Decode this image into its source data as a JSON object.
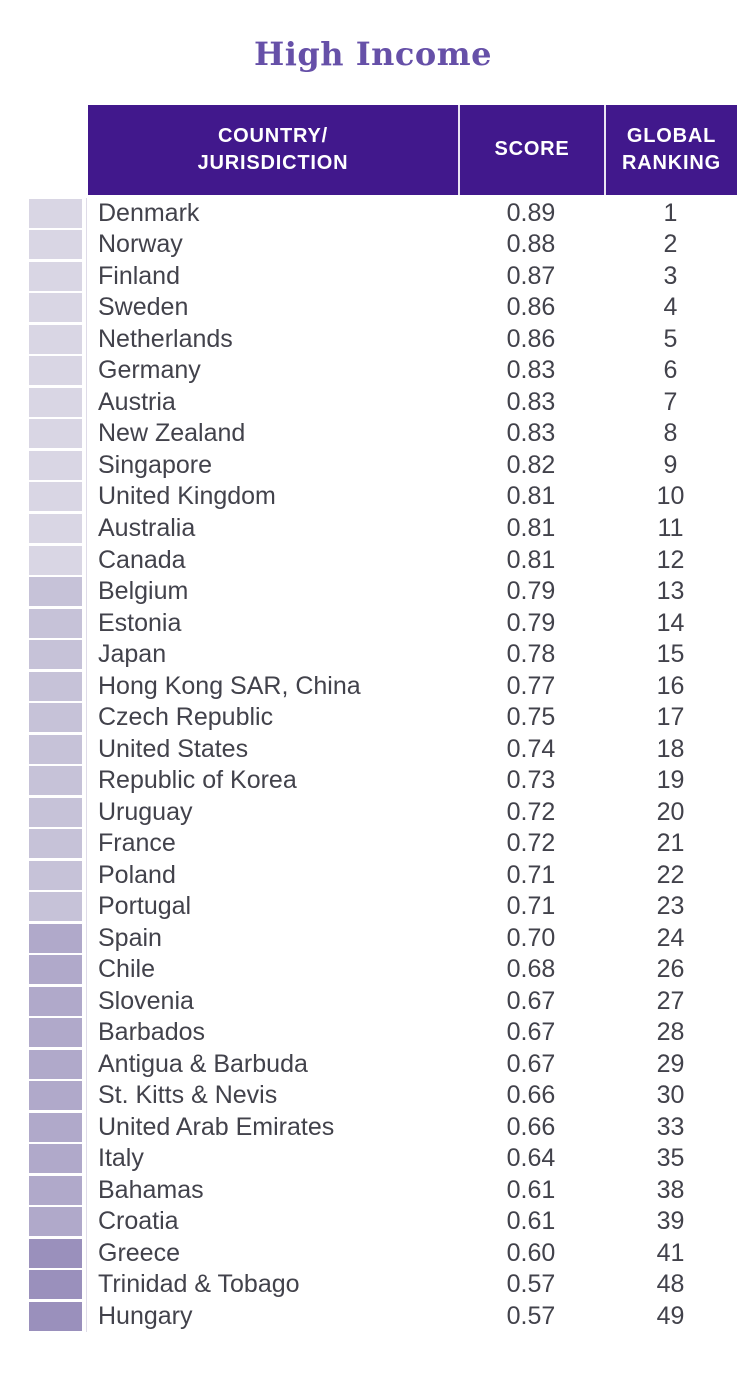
{
  "title": "High Income",
  "colors": {
    "title_text": "#6650A8",
    "header_bg": "#41188C",
    "header_text": "#FFFFFF",
    "header_divider": "#E9E4F2",
    "body_text": "#42424B",
    "tier_1": "#D9D6E4",
    "tier_2": "#C6C2D8",
    "tier_3": "#B0A9CA",
    "tier_4": "#9A90BC"
  },
  "table": {
    "columns": [
      {
        "lines": [
          "COUNTRY/",
          "JURISDICTION"
        ]
      },
      {
        "lines": [
          "SCORE"
        ]
      },
      {
        "lines": [
          "GLOBAL",
          "RANKING"
        ]
      }
    ],
    "rows": [
      {
        "country": "Denmark",
        "score": "0.89",
        "rank": "1",
        "tier": 1
      },
      {
        "country": "Norway",
        "score": "0.88",
        "rank": "2",
        "tier": 1
      },
      {
        "country": "Finland",
        "score": "0.87",
        "rank": "3",
        "tier": 1
      },
      {
        "country": "Sweden",
        "score": "0.86",
        "rank": "4",
        "tier": 1
      },
      {
        "country": "Netherlands",
        "score": "0.86",
        "rank": "5",
        "tier": 1
      },
      {
        "country": "Germany",
        "score": "0.83",
        "rank": "6",
        "tier": 1
      },
      {
        "country": "Austria",
        "score": "0.83",
        "rank": "7",
        "tier": 1
      },
      {
        "country": "New Zealand",
        "score": "0.83",
        "rank": "8",
        "tier": 1
      },
      {
        "country": "Singapore",
        "score": "0.82",
        "rank": "9",
        "tier": 1
      },
      {
        "country": "United Kingdom",
        "score": "0.81",
        "rank": "10",
        "tier": 1
      },
      {
        "country": "Australia",
        "score": "0.81",
        "rank": "11",
        "tier": 1
      },
      {
        "country": "Canada",
        "score": "0.81",
        "rank": "12",
        "tier": 1
      },
      {
        "country": "Belgium",
        "score": "0.79",
        "rank": "13",
        "tier": 2
      },
      {
        "country": "Estonia",
        "score": "0.79",
        "rank": "14",
        "tier": 2
      },
      {
        "country": "Japan",
        "score": "0.78",
        "rank": "15",
        "tier": 2
      },
      {
        "country": "Hong Kong SAR, China",
        "score": "0.77",
        "rank": "16",
        "tier": 2
      },
      {
        "country": "Czech Republic",
        "score": "0.75",
        "rank": "17",
        "tier": 2
      },
      {
        "country": "United States",
        "score": "0.74",
        "rank": "18",
        "tier": 2
      },
      {
        "country": "Republic of Korea",
        "score": "0.73",
        "rank": "19",
        "tier": 2
      },
      {
        "country": "Uruguay",
        "score": "0.72",
        "rank": "20",
        "tier": 2
      },
      {
        "country": "France",
        "score": "0.72",
        "rank": "21",
        "tier": 2
      },
      {
        "country": "Poland",
        "score": "0.71",
        "rank": "22",
        "tier": 2
      },
      {
        "country": "Portugal",
        "score": "0.71",
        "rank": "23",
        "tier": 2
      },
      {
        "country": "Spain",
        "score": "0.70",
        "rank": "24",
        "tier": 3
      },
      {
        "country": "Chile",
        "score": "0.68",
        "rank": "26",
        "tier": 3
      },
      {
        "country": "Slovenia",
        "score": "0.67",
        "rank": "27",
        "tier": 3
      },
      {
        "country": "Barbados",
        "score": "0.67",
        "rank": "28",
        "tier": 3
      },
      {
        "country": "Antigua & Barbuda",
        "score": "0.67",
        "rank": "29",
        "tier": 3
      },
      {
        "country": "St. Kitts & Nevis",
        "score": "0.66",
        "rank": "30",
        "tier": 3
      },
      {
        "country": "United Arab Emirates",
        "score": "0.66",
        "rank": "33",
        "tier": 3
      },
      {
        "country": "Italy",
        "score": "0.64",
        "rank": "35",
        "tier": 3
      },
      {
        "country": "Bahamas",
        "score": "0.61",
        "rank": "38",
        "tier": 3
      },
      {
        "country": "Croatia",
        "score": "0.61",
        "rank": "39",
        "tier": 3
      },
      {
        "country": "Greece",
        "score": "0.60",
        "rank": "41",
        "tier": 4
      },
      {
        "country": "Trinidad & Tobago",
        "score": "0.57",
        "rank": "48",
        "tier": 4
      },
      {
        "country": "Hungary",
        "score": "0.57",
        "rank": "49",
        "tier": 4
      }
    ]
  }
}
